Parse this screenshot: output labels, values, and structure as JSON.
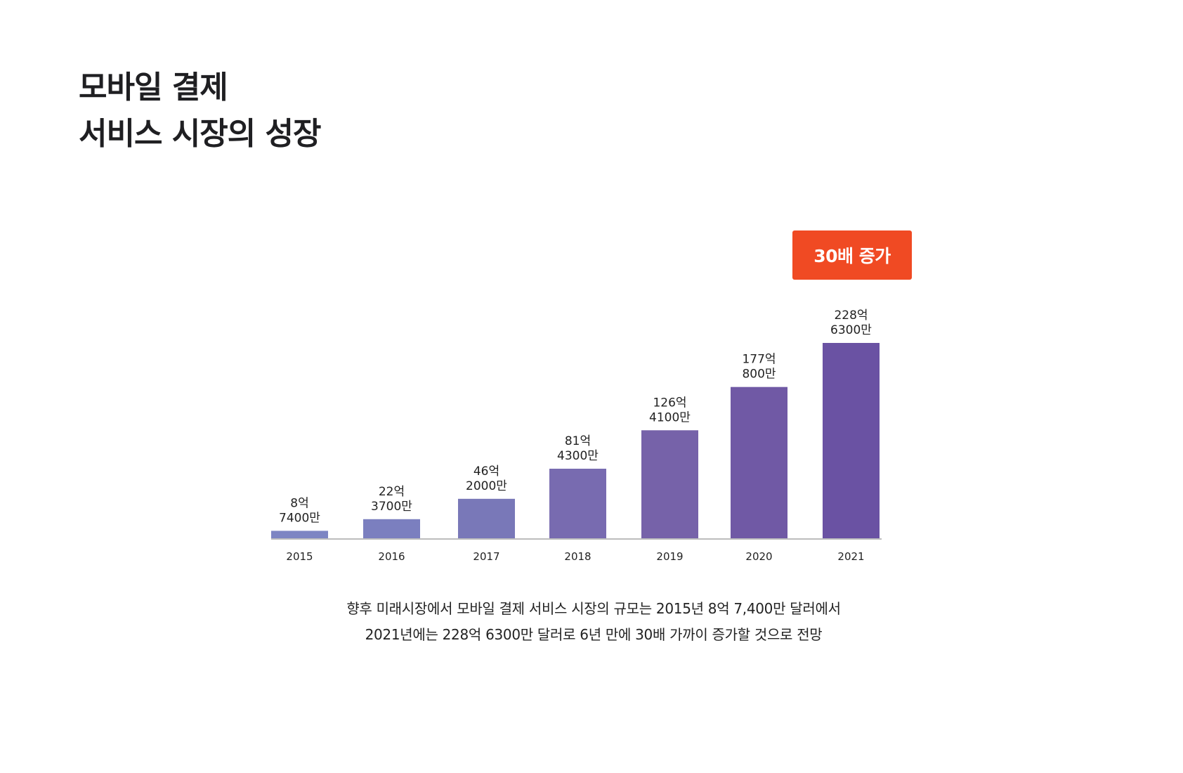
{
  "title_lines": [
    "모바일 결제",
    "서비스 시장의 성장"
  ],
  "badge": {
    "label": "30배 증가",
    "color": "#f04a23"
  },
  "caption_lines": [
    "향후 미래시장에서 모바일 결제 서비스 시장의 규모는 2015년 8억 7,400만 달러에서",
    "2021년에는 228억 6300만 달러로 6년 만에 30배 가까이 증가할 것으로 전망"
  ],
  "chart_data": {
    "type": "bar",
    "title": "",
    "xlabel": "",
    "ylabel": "",
    "unit": "억",
    "categories": [
      "2015",
      "2016",
      "2017",
      "2018",
      "2019",
      "2020",
      "2021"
    ],
    "values": [
      8.74,
      22.37,
      46.2,
      81.43,
      126.41,
      177.08,
      228.63
    ],
    "data_labels": [
      [
        "8억",
        "7400만"
      ],
      [
        "22억",
        "3700만"
      ],
      [
        "46억",
        "2000만"
      ],
      [
        "81억",
        "4300만"
      ],
      [
        "126억",
        "4100만"
      ],
      [
        "177억",
        "800만"
      ],
      [
        "228억",
        "6300만"
      ]
    ],
    "colors": [
      "#7d85c3",
      "#7b7fbf",
      "#7978b8",
      "#786bb0",
      "#7662a9",
      "#7059a5",
      "#6a52a3"
    ],
    "ylim": [
      0,
      228.63
    ],
    "grid": false,
    "legend": "none",
    "axis_color": "#bdbdbd"
  }
}
